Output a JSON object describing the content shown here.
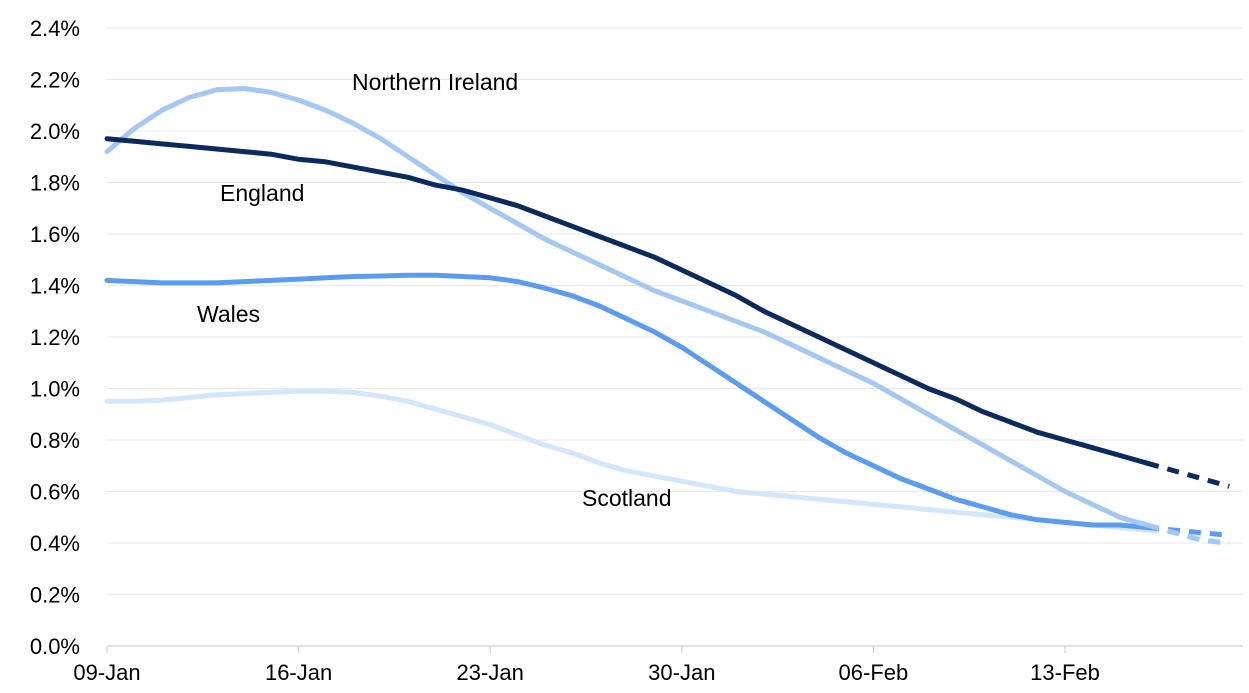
{
  "chart_data": {
    "type": "line",
    "title": "",
    "xlabel": "",
    "ylabel": "",
    "x_start": "09-Jan",
    "x_tick_labels": [
      "09-Jan",
      "16-Jan",
      "23-Jan",
      "30-Jan",
      "06-Feb",
      "13-Feb"
    ],
    "y_tick_labels": [
      "0.0%",
      "0.2%",
      "0.4%",
      "0.6%",
      "0.8%",
      "1.0%",
      "1.2%",
      "1.4%",
      "1.6%",
      "1.8%",
      "2.0%",
      "2.2%",
      "2.4%"
    ],
    "ylim": [
      0,
      2.4
    ],
    "y_unit": "%",
    "grid": true,
    "legend": "none",
    "x": [
      "09-Jan",
      "10-Jan",
      "11-Jan",
      "12-Jan",
      "13-Jan",
      "14-Jan",
      "15-Jan",
      "16-Jan",
      "17-Jan",
      "18-Jan",
      "19-Jan",
      "20-Jan",
      "21-Jan",
      "22-Jan",
      "23-Jan",
      "24-Jan",
      "25-Jan",
      "26-Jan",
      "27-Jan",
      "28-Jan",
      "29-Jan",
      "30-Jan",
      "31-Jan",
      "01-Feb",
      "02-Feb",
      "03-Feb",
      "04-Feb",
      "05-Feb",
      "06-Feb",
      "07-Feb",
      "08-Feb",
      "09-Feb",
      "10-Feb",
      "11-Feb",
      "12-Feb",
      "13-Feb",
      "14-Feb",
      "15-Feb",
      "16-Feb",
      "17-Feb",
      "18-Feb",
      "19-Feb"
    ],
    "projection_start": "16-Feb",
    "series": [
      {
        "name": "England",
        "color": "#0b2a5e",
        "values": [
          1.97,
          1.96,
          1.95,
          1.94,
          1.93,
          1.92,
          1.91,
          1.89,
          1.88,
          1.86,
          1.84,
          1.82,
          1.79,
          1.77,
          1.74,
          1.71,
          1.67,
          1.63,
          1.59,
          1.55,
          1.51,
          1.46,
          1.41,
          1.36,
          1.3,
          1.25,
          1.2,
          1.15,
          1.1,
          1.05,
          1.0,
          0.96,
          0.91,
          0.87,
          0.83,
          0.8,
          0.77,
          0.74,
          0.71,
          0.68,
          0.65,
          0.62
        ]
      },
      {
        "name": "Northern Ireland",
        "color": "#a4c8f3",
        "values": [
          1.92,
          2.01,
          2.08,
          2.13,
          2.16,
          2.165,
          2.15,
          2.12,
          2.08,
          2.03,
          1.97,
          1.9,
          1.83,
          1.76,
          1.7,
          1.64,
          1.58,
          1.53,
          1.48,
          1.43,
          1.38,
          1.34,
          1.3,
          1.26,
          1.22,
          1.17,
          1.12,
          1.07,
          1.02,
          0.96,
          0.9,
          0.84,
          0.78,
          0.72,
          0.66,
          0.6,
          0.55,
          0.5,
          0.47,
          0.44,
          0.41,
          0.4
        ]
      },
      {
        "name": "Wales",
        "color": "#5b9cf0",
        "values": [
          1.42,
          1.415,
          1.41,
          1.41,
          1.41,
          1.415,
          1.42,
          1.425,
          1.43,
          1.435,
          1.437,
          1.44,
          1.44,
          1.435,
          1.43,
          1.415,
          1.39,
          1.36,
          1.32,
          1.27,
          1.22,
          1.16,
          1.09,
          1.02,
          0.95,
          0.88,
          0.81,
          0.75,
          0.7,
          0.65,
          0.61,
          0.57,
          0.54,
          0.51,
          0.49,
          0.48,
          0.47,
          0.47,
          0.46,
          0.45,
          0.44,
          0.43
        ]
      },
      {
        "name": "Scotland",
        "color": "#d4e6fb",
        "values": [
          0.95,
          0.95,
          0.955,
          0.965,
          0.975,
          0.98,
          0.985,
          0.99,
          0.99,
          0.985,
          0.97,
          0.95,
          0.92,
          0.89,
          0.86,
          0.82,
          0.78,
          0.75,
          0.71,
          0.68,
          0.66,
          0.64,
          0.62,
          0.6,
          0.59,
          0.58,
          0.57,
          0.56,
          0.55,
          0.54,
          0.53,
          0.52,
          0.51,
          0.5,
          0.49,
          0.48,
          0.47,
          0.46,
          0.45,
          0.44,
          0.42,
          0.39
        ]
      }
    ]
  }
}
